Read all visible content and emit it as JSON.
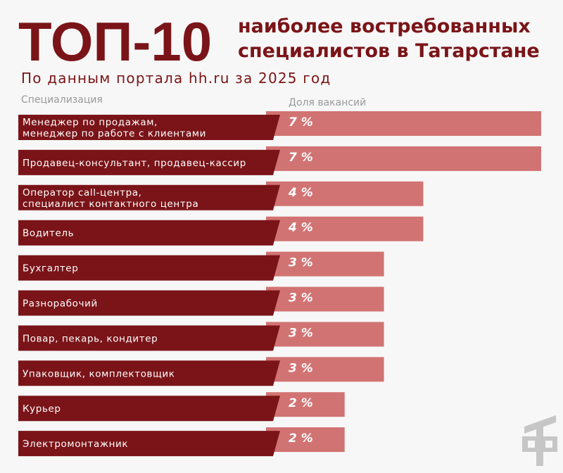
{
  "chart_data": {
    "type": "hbar",
    "title": "ТОП-10",
    "subtitle_lines": [
      "наиболее востребованных",
      "специалистов в Татарстане"
    ],
    "source": "По данным портала hh.ru за 2025 год",
    "category_header": "Специализация",
    "value_header": "Доля вакансий",
    "categories": [
      "Менеджер по продажам,\nменеджер по работе с клиентами",
      "Продавец-консультант, продавец-кассир",
      "Оператор call-центра,\nспециалист контактного центра",
      "Водитель",
      "Бухгалтер",
      "Разнорабочий",
      "Повар, пекарь, кондитер",
      "Упаковщик, комплектовщик",
      "Курьер",
      "Электромонтажник"
    ],
    "values": [
      7,
      7,
      4,
      4,
      3,
      3,
      3,
      3,
      2,
      2
    ],
    "value_labels": [
      "7 %",
      "7 %",
      "4 %",
      "4 %",
      "3 %",
      "3 %",
      "3 %",
      "3 %",
      "2 %",
      "2 %"
    ],
    "color": "#d27373",
    "label_color": "#7a1418"
  }
}
